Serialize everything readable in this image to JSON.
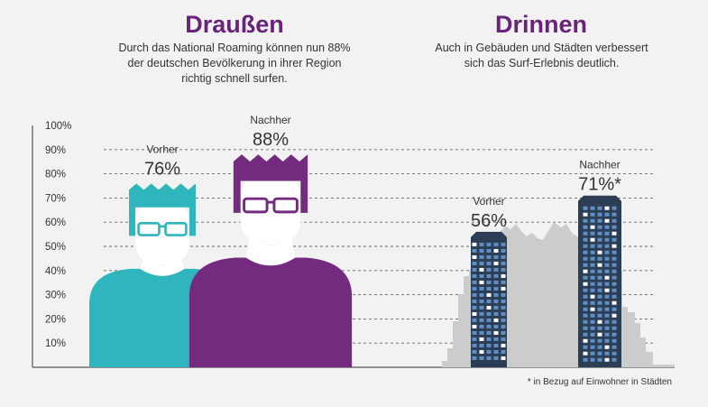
{
  "sections": {
    "outdoor": {
      "title": "Draußen",
      "subtitle_lines": [
        "Durch das National Roaming können nun 88%",
        "der deutschen Bevölkerung in ihrer Region",
        "richtig schnell surfen."
      ]
    },
    "indoor": {
      "title": "Drinnen",
      "subtitle_lines": [
        "Auch in Gebäuden und Städten verbessert",
        "sich das Surf-Erlebnis deutlich."
      ]
    }
  },
  "footnote": "* in Bezug auf Einwohner in Städten",
  "colors": {
    "title": "#6a237a",
    "teal": "#2fb5bd",
    "purple": "#742a7f",
    "grid": "#666666",
    "building": "#2c3e55",
    "window": "#5f8fc4",
    "skyline": "#cccccc"
  },
  "chart_data": {
    "type": "bar",
    "title": "",
    "xlabel": "",
    "ylabel": "",
    "ylim": [
      0,
      100
    ],
    "y_ticks": [
      "10%",
      "20%",
      "30%",
      "40%",
      "50%",
      "60%",
      "70%",
      "80%",
      "90%",
      "100%"
    ],
    "grid": true,
    "groups": [
      {
        "name": "Draußen",
        "bars": [
          {
            "label": "Vorher",
            "value": 76,
            "value_label": "76%",
            "icon": "person-teal-icon"
          },
          {
            "label": "Nachher",
            "value": 88,
            "value_label": "88%",
            "icon": "person-purple-icon"
          }
        ]
      },
      {
        "name": "Drinnen",
        "bars": [
          {
            "label": "Vorher",
            "value": 56,
            "value_label": "56%",
            "icon": "building-icon"
          },
          {
            "label": "Nachher",
            "value": 71,
            "value_label": "71%*",
            "icon": "building-icon"
          }
        ]
      }
    ]
  }
}
